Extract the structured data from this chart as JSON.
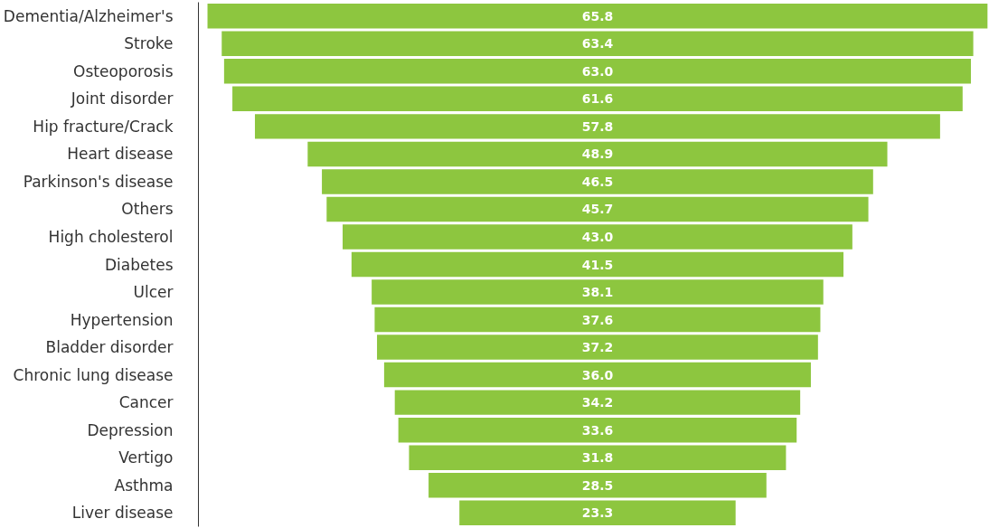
{
  "chart_data": {
    "type": "other",
    "categories": [
      "Dementia/Alzheimer's",
      "Stroke",
      "Osteoporosis",
      "Joint disorder",
      "Hip fracture/Crack",
      "Heart disease",
      "Parkinson's disease",
      "Others",
      "High cholesterol",
      "Diabetes",
      "Ulcer",
      "Hypertension",
      "Bladder disorder",
      "Chronic lung disease",
      "Cancer",
      "Depression",
      "Vertigo",
      "Asthma",
      "Liver disease"
    ],
    "values": [
      65.8,
      63.4,
      63.0,
      61.6,
      57.8,
      48.9,
      46.5,
      45.7,
      43.0,
      41.5,
      38.1,
      37.6,
      37.2,
      36.0,
      34.2,
      33.6,
      31.8,
      28.5,
      23.3
    ],
    "value_labels": [
      "65.8",
      "63.4",
      "63.0",
      "61.6",
      "57.8",
      "48.9",
      "46.5",
      "45.7",
      "43.0",
      "41.5",
      "38.1",
      "37.6",
      "37.2",
      "36.0",
      "34.2",
      "33.6",
      "31.8",
      "28.5",
      "23.3"
    ],
    "color": "#8dc63f"
  }
}
